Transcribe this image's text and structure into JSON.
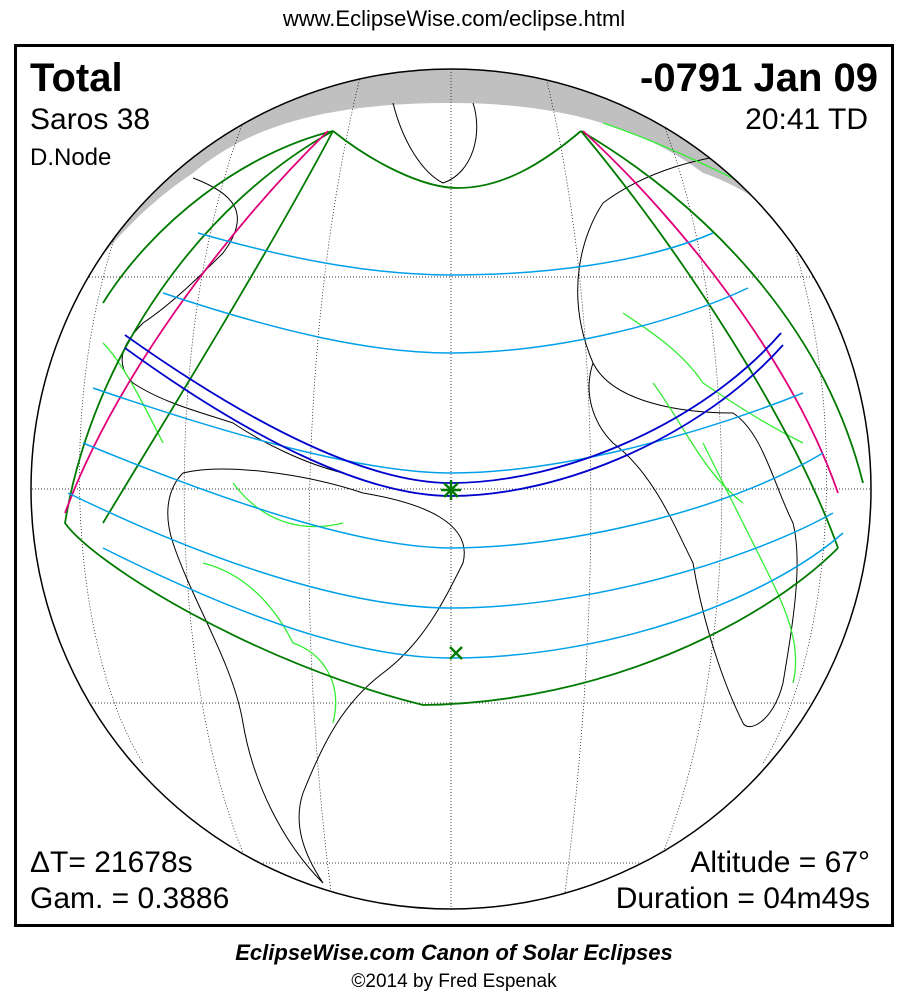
{
  "header": {
    "url": "www.EclipseWise.com/eclipse.html"
  },
  "eclipse": {
    "type": "Total",
    "saros": "Saros  38",
    "node": "D.Node",
    "date": "-0791 Jan 09",
    "time": "20:41 TD",
    "delta_t": "ΔT=  21678s",
    "gamma": "Gam. = 0.3886",
    "altitude": "Altitude = 67°",
    "duration": "Duration = 04m49s"
  },
  "map": {
    "projection": "orthographic globe",
    "colors": {
      "central_path": "#0000cc",
      "isolines": "#00a0e8",
      "limits": "#007a00",
      "rise_set": "#e0007a",
      "borders": "#33ee33",
      "night_cap": "#c0c0c0"
    },
    "markers": [
      "greatest-eclipse-star",
      "sub-solar-x"
    ]
  },
  "footer": {
    "title": "EclipseWise.com Canon of Solar Eclipses",
    "copyright": "©2014 by Fred Espenak"
  }
}
